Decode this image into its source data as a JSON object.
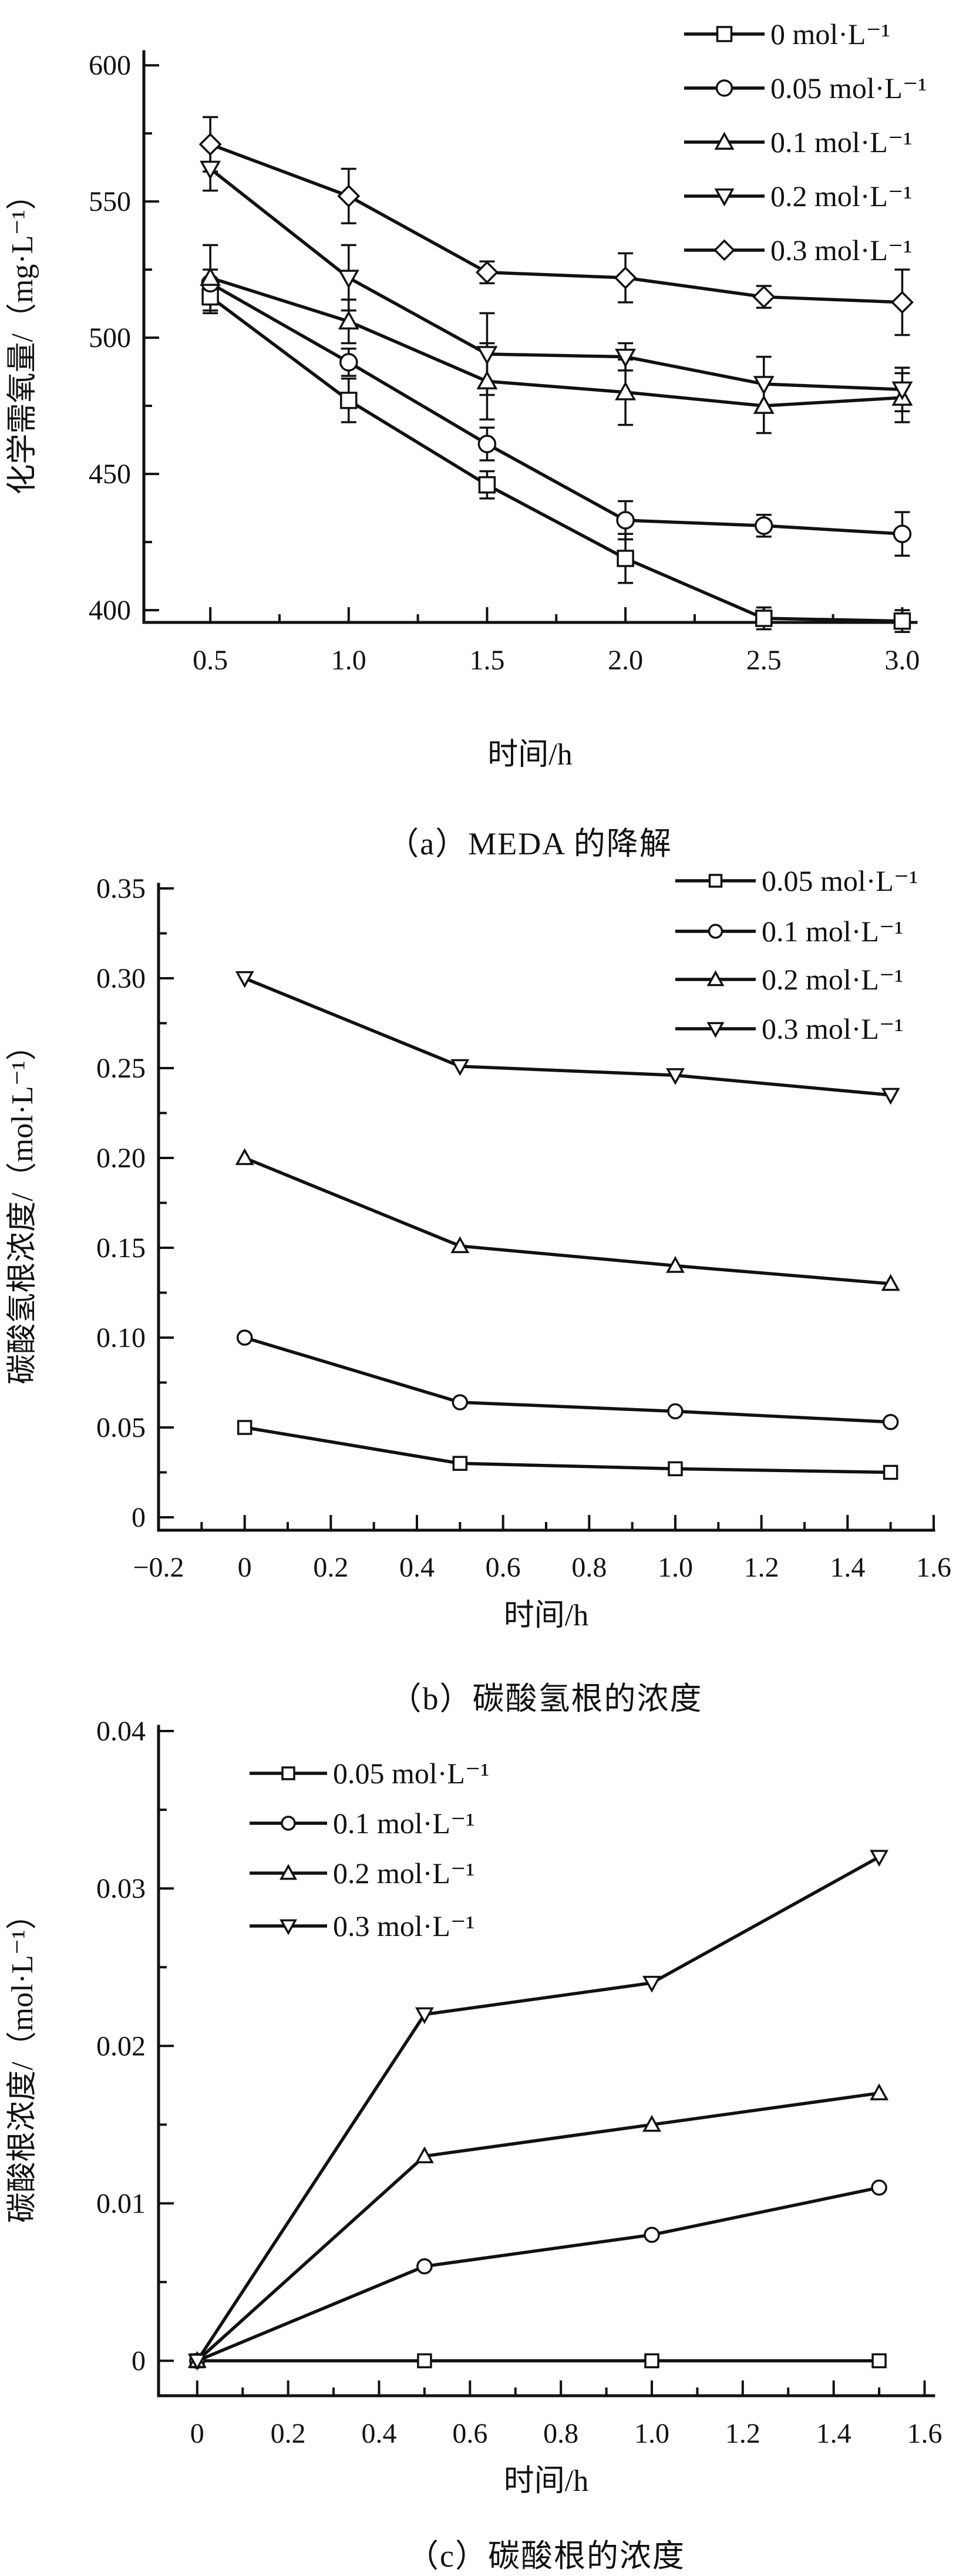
{
  "page": {
    "background": "#ffffff",
    "text_color": "#111111"
  },
  "figure_captions": {
    "a": "（a）MEDA 的降解",
    "b": "（b）碳酸氢根的浓度",
    "c": "（c）碳酸根的浓度"
  },
  "chart_data": [
    {
      "id": "a",
      "type": "line",
      "caption": "（a）MEDA 的降解",
      "xlabel": "时间/h",
      "ylabel": "化学需氧量/（mg·L⁻¹）",
      "xlim": [
        0.26,
        3.05
      ],
      "ylim": [
        395.5,
        605
      ],
      "x": [
        0.5,
        1.0,
        1.5,
        2.0,
        2.5,
        3.0
      ],
      "xticks": {
        "values": [
          0.5,
          1.0,
          1.5,
          2.0,
          2.5,
          3.0
        ],
        "labels": [
          "0.5",
          "1.0",
          "1.5",
          "2.0",
          "2.5",
          "3.0"
        ],
        "minor": [
          0.75,
          1.25,
          1.75,
          2.25,
          2.75
        ]
      },
      "yticks": {
        "values": [
          400,
          450,
          500,
          550,
          600
        ],
        "labels": [
          "400",
          "450",
          "500",
          "550",
          "600"
        ],
        "minor": [
          425,
          475,
          525,
          575
        ]
      },
      "grid": false,
      "legend_position": "top-right",
      "series": [
        {
          "name": "0 mol·L⁻¹",
          "marker": "square",
          "values": [
            515,
            477,
            446,
            419,
            397,
            396
          ],
          "err": [
            6,
            8,
            5,
            9,
            4,
            4
          ]
        },
        {
          "name": "0.05 mol·L⁻¹",
          "marker": "circle",
          "values": [
            520,
            491,
            461,
            433,
            431,
            428
          ],
          "err": [
            5,
            5,
            6,
            7,
            4,
            8
          ]
        },
        {
          "name": "0.1 mol·L⁻¹",
          "marker": "triangle-up",
          "values": [
            522,
            506,
            484,
            480,
            475,
            478
          ],
          "err": [
            12,
            8,
            14,
            12,
            10,
            9
          ]
        },
        {
          "name": "0.2 mol·L⁻¹",
          "marker": "triangle-down",
          "values": [
            562,
            522,
            494,
            493,
            483,
            481
          ],
          "err": [
            8,
            12,
            15,
            5,
            10,
            8
          ]
        },
        {
          "name": "0.3 mol·L⁻¹",
          "marker": "diamond",
          "values": [
            571,
            552,
            524,
            522,
            515,
            513
          ],
          "err": [
            10,
            10,
            4,
            9,
            4,
            12
          ]
        }
      ]
    },
    {
      "id": "b",
      "type": "line",
      "caption": "（b）碳酸氢根的浓度",
      "xlabel": "时间/h",
      "ylabel": "碳酸氢根浓度/（mol·L⁻¹）",
      "xlim": [
        -0.2,
        1.6
      ],
      "ylim": [
        -0.0072,
        0.3523
      ],
      "x": [
        0,
        0.5,
        1.0,
        1.5
      ],
      "xticks": {
        "values": [
          -0.2,
          0,
          0.2,
          0.4,
          0.6,
          0.8,
          1.0,
          1.2,
          1.4,
          1.6
        ],
        "labels": [
          "−0.2",
          "0",
          "0.2",
          "0.4",
          "0.6",
          "0.8",
          "1.0",
          "1.2",
          "1.4",
          "1.6"
        ],
        "minor": [
          -0.1,
          0.1,
          0.3,
          0.5,
          0.7,
          0.9,
          1.1,
          1.3,
          1.5
        ]
      },
      "yticks": {
        "values": [
          0,
          0.05,
          0.1,
          0.15,
          0.2,
          0.25,
          0.3,
          0.35
        ],
        "labels": [
          "0",
          "0.05",
          "0.10",
          "0.15",
          "0.20",
          "0.25",
          "0.30",
          "0.35"
        ],
        "minor": [
          0.025,
          0.075,
          0.125,
          0.175,
          0.225,
          0.275,
          0.325
        ]
      },
      "grid": false,
      "legend_position": "top-right-inside",
      "series": [
        {
          "name": "0.05 mol·L⁻¹",
          "marker": "square",
          "values": [
            0.05,
            0.03,
            0.027,
            0.025
          ]
        },
        {
          "name": "0.1 mol·L⁻¹",
          "marker": "circle",
          "values": [
            0.1,
            0.064,
            0.059,
            0.053
          ]
        },
        {
          "name": "0.2 mol·L⁻¹",
          "marker": "triangle-up",
          "values": [
            0.2,
            0.151,
            0.14,
            0.13
          ]
        },
        {
          "name": "0.3 mol·L⁻¹",
          "marker": "triangle-down",
          "values": [
            0.3,
            0.251,
            0.246,
            0.235
          ]
        }
      ]
    },
    {
      "id": "c",
      "type": "line",
      "caption": "（c）碳酸根的浓度",
      "xlabel": "时间/h",
      "ylabel": "碳酸根浓度/（mol·L⁻¹）",
      "xlim": [
        -0.085,
        1.62
      ],
      "ylim": [
        -0.00222,
        0.0403
      ],
      "x": [
        0,
        0.5,
        1.0,
        1.5
      ],
      "xticks": {
        "values": [
          0,
          0.2,
          0.4,
          0.6,
          0.8,
          1.0,
          1.2,
          1.4,
          1.6
        ],
        "labels": [
          "0",
          "0.2",
          "0.4",
          "0.6",
          "0.8",
          "1.0",
          "1.2",
          "1.4",
          "1.6"
        ],
        "minor": [
          0.1,
          0.3,
          0.5,
          0.7,
          0.9,
          1.1,
          1.3,
          1.5
        ]
      },
      "yticks": {
        "values": [
          0,
          0.01,
          0.02,
          0.03,
          0.04
        ],
        "labels": [
          "0",
          "0.01",
          "0.02",
          "0.03",
          "0.04"
        ],
        "minor": [
          0.005,
          0.015,
          0.025,
          0.035
        ]
      },
      "grid": false,
      "legend_position": "upper-left-inside",
      "series": [
        {
          "name": "0.05 mol·L⁻¹",
          "marker": "square",
          "values": [
            0,
            0,
            0,
            0
          ]
        },
        {
          "name": "0.1 mol·L⁻¹",
          "marker": "circle",
          "values": [
            0,
            0.006,
            0.008,
            0.011
          ]
        },
        {
          "name": "0.2 mol·L⁻¹",
          "marker": "triangle-up",
          "values": [
            0,
            0.013,
            0.015,
            0.017
          ]
        },
        {
          "name": "0.3 mol·L⁻¹",
          "marker": "triangle-down",
          "values": [
            0,
            0.022,
            0.024,
            0.032
          ]
        }
      ]
    }
  ]
}
